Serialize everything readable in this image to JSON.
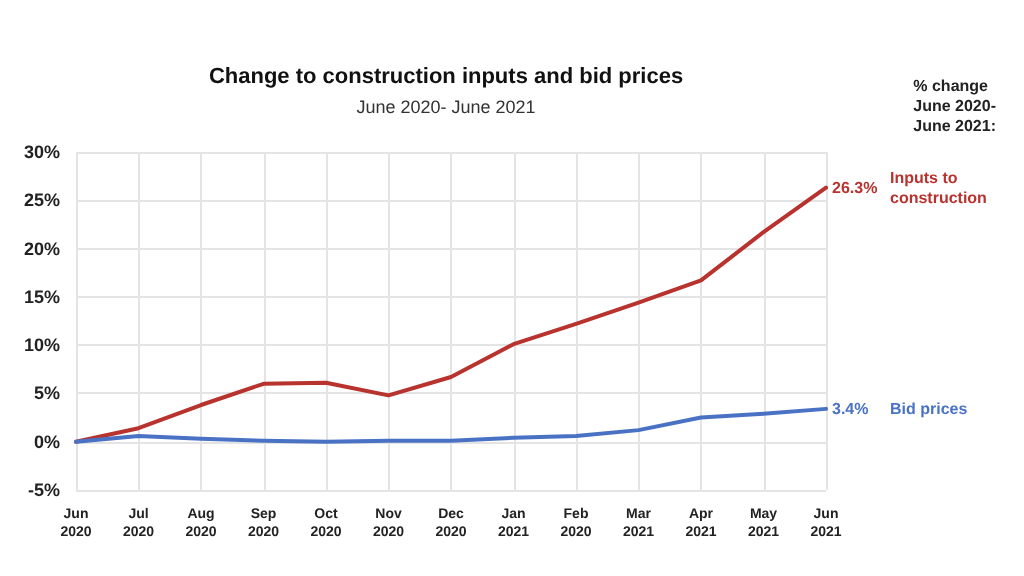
{
  "chart_data": {
    "type": "line",
    "title": "Change to construction inputs and bid prices",
    "subtitle": "June 2020- June 2021",
    "categories": [
      "Jun\n2020",
      "Jul\n2020",
      "Aug\n2020",
      "Sep\n2020",
      "Oct\n2020",
      "Nov\n2020",
      "Dec\n2020",
      "Jan\n2021",
      "Feb\n2020",
      "Mar\n2021",
      "Apr\n2021",
      "May\n2021",
      "Jun\n2021"
    ],
    "series": [
      {
        "name": "Inputs to construction",
        "color": "#b8322e",
        "values": [
          0,
          1.4,
          3.8,
          6.0,
          6.1,
          4.8,
          6.7,
          10.1,
          12.2,
          14.4,
          16.7,
          21.7,
          26.3
        ],
        "value_labels": [
          null,
          null,
          null,
          null,
          null,
          null,
          null,
          null,
          null,
          null,
          null,
          null,
          "26.3%"
        ]
      },
      {
        "name": "Bid prices",
        "color": "#4a72c4",
        "values": [
          0,
          0.6,
          0.3,
          0.1,
          0.0,
          0.1,
          0.1,
          0.4,
          0.6,
          1.2,
          2.5,
          2.9,
          3.4
        ],
        "value_labels": [
          null,
          null,
          null,
          null,
          null,
          null,
          null,
          null,
          null,
          null,
          null,
          null,
          "3.4%"
        ]
      }
    ],
    "annotations": [
      "% change\nJune 2020-\nJune 2021:"
    ],
    "ylim": [
      -5,
      30
    ],
    "yticks": [
      {
        "value": -5,
        "label": "-5%"
      },
      {
        "value": 0,
        "label": "0%"
      },
      {
        "value": 5,
        "label": "5%"
      },
      {
        "value": 10,
        "label": "10%"
      },
      {
        "value": 15,
        "label": "15%"
      },
      {
        "value": 20,
        "label": "20%"
      },
      {
        "value": 25,
        "label": "25%"
      },
      {
        "value": 30,
        "label": "30%"
      }
    ],
    "grid": true,
    "marker": "none",
    "line_style": "solid",
    "legend": false
  }
}
